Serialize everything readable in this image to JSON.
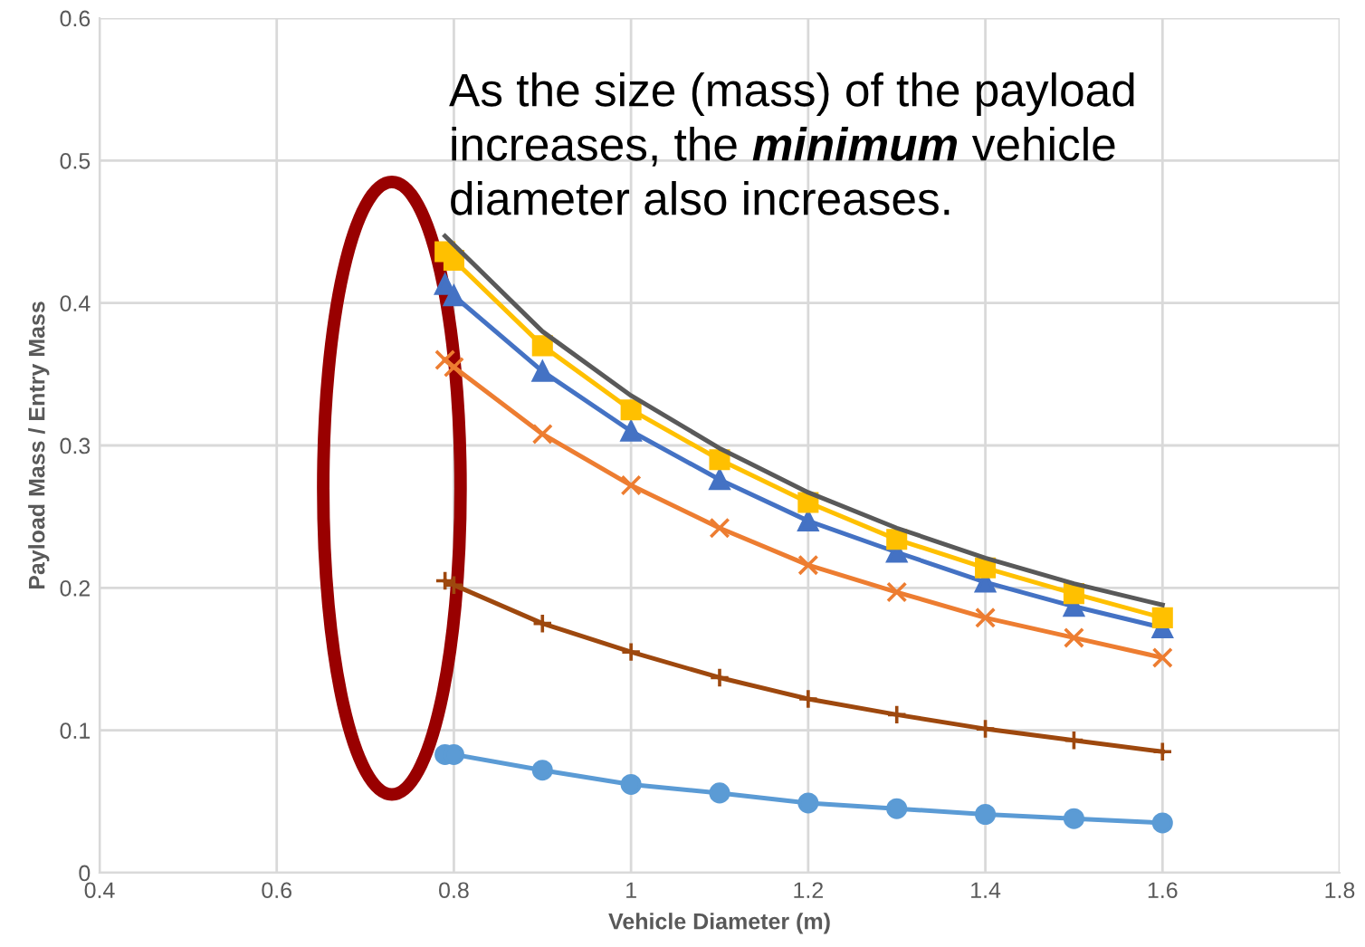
{
  "chart_data": {
    "type": "line",
    "xlabel": "Vehicle Diameter (m)",
    "ylabel": "Payload Mass / Entry Mass",
    "annotations": [
      "As the size (mass) of the payload increases, the minimum vehicle diameter also increases."
    ],
    "xlim": [
      0.4,
      1.8
    ],
    "xticks": [
      0.4,
      0.6,
      0.8,
      1,
      1.2,
      1.4,
      1.6,
      1.8
    ],
    "ylim": [
      0,
      0.6
    ],
    "yticks": [
      0,
      0.1,
      0.2,
      0.3,
      0.4,
      0.5,
      0.6
    ],
    "grid": true,
    "legend": false,
    "series": [
      {
        "color": "#5b9bd5",
        "marker": "circle",
        "x": [
          0.79,
          0.8,
          0.9,
          1.0,
          1.1,
          1.2,
          1.3,
          1.4,
          1.5,
          1.6
        ],
        "values": [
          0.083,
          0.083,
          0.072,
          0.062,
          0.056,
          0.049,
          0.045,
          0.041,
          0.038,
          0.035
        ]
      },
      {
        "color": "#9e480e",
        "marker": "plus",
        "x": [
          0.79,
          0.8,
          0.9,
          1.0,
          1.1,
          1.2,
          1.3,
          1.4,
          1.5,
          1.6
        ],
        "values": [
          0.205,
          0.202,
          0.175,
          0.155,
          0.137,
          0.122,
          0.111,
          0.101,
          0.093,
          0.085
        ]
      },
      {
        "color": "#ed7d31",
        "marker": "cross",
        "x": [
          0.79,
          0.8,
          0.9,
          1.0,
          1.1,
          1.2,
          1.3,
          1.4,
          1.5,
          1.6
        ],
        "values": [
          0.36,
          0.355,
          0.308,
          0.272,
          0.242,
          0.216,
          0.197,
          0.179,
          0.165,
          0.151
        ]
      },
      {
        "color": "#4472c4",
        "marker": "triangle",
        "x": [
          0.79,
          0.8,
          0.9,
          1.0,
          1.1,
          1.2,
          1.3,
          1.4,
          1.5,
          1.6
        ],
        "values": [
          0.413,
          0.405,
          0.352,
          0.31,
          0.276,
          0.247,
          0.225,
          0.204,
          0.187,
          0.172
        ]
      },
      {
        "color": "#ffc000",
        "marker": "square",
        "x": [
          0.79,
          0.8,
          0.9,
          1.0,
          1.1,
          1.2,
          1.3,
          1.4,
          1.5,
          1.6
        ],
        "values": [
          0.436,
          0.43,
          0.37,
          0.325,
          0.29,
          0.26,
          0.234,
          0.214,
          0.196,
          0.179
        ]
      },
      {
        "color": "#595959",
        "marker": "none",
        "x": [
          0.79,
          0.9,
          1.0,
          1.1,
          1.2,
          1.3,
          1.4,
          1.5,
          1.6
        ],
        "values": [
          0.447,
          0.38,
          0.335,
          0.298,
          0.267,
          0.242,
          0.221,
          0.203,
          0.188
        ]
      }
    ]
  }
}
